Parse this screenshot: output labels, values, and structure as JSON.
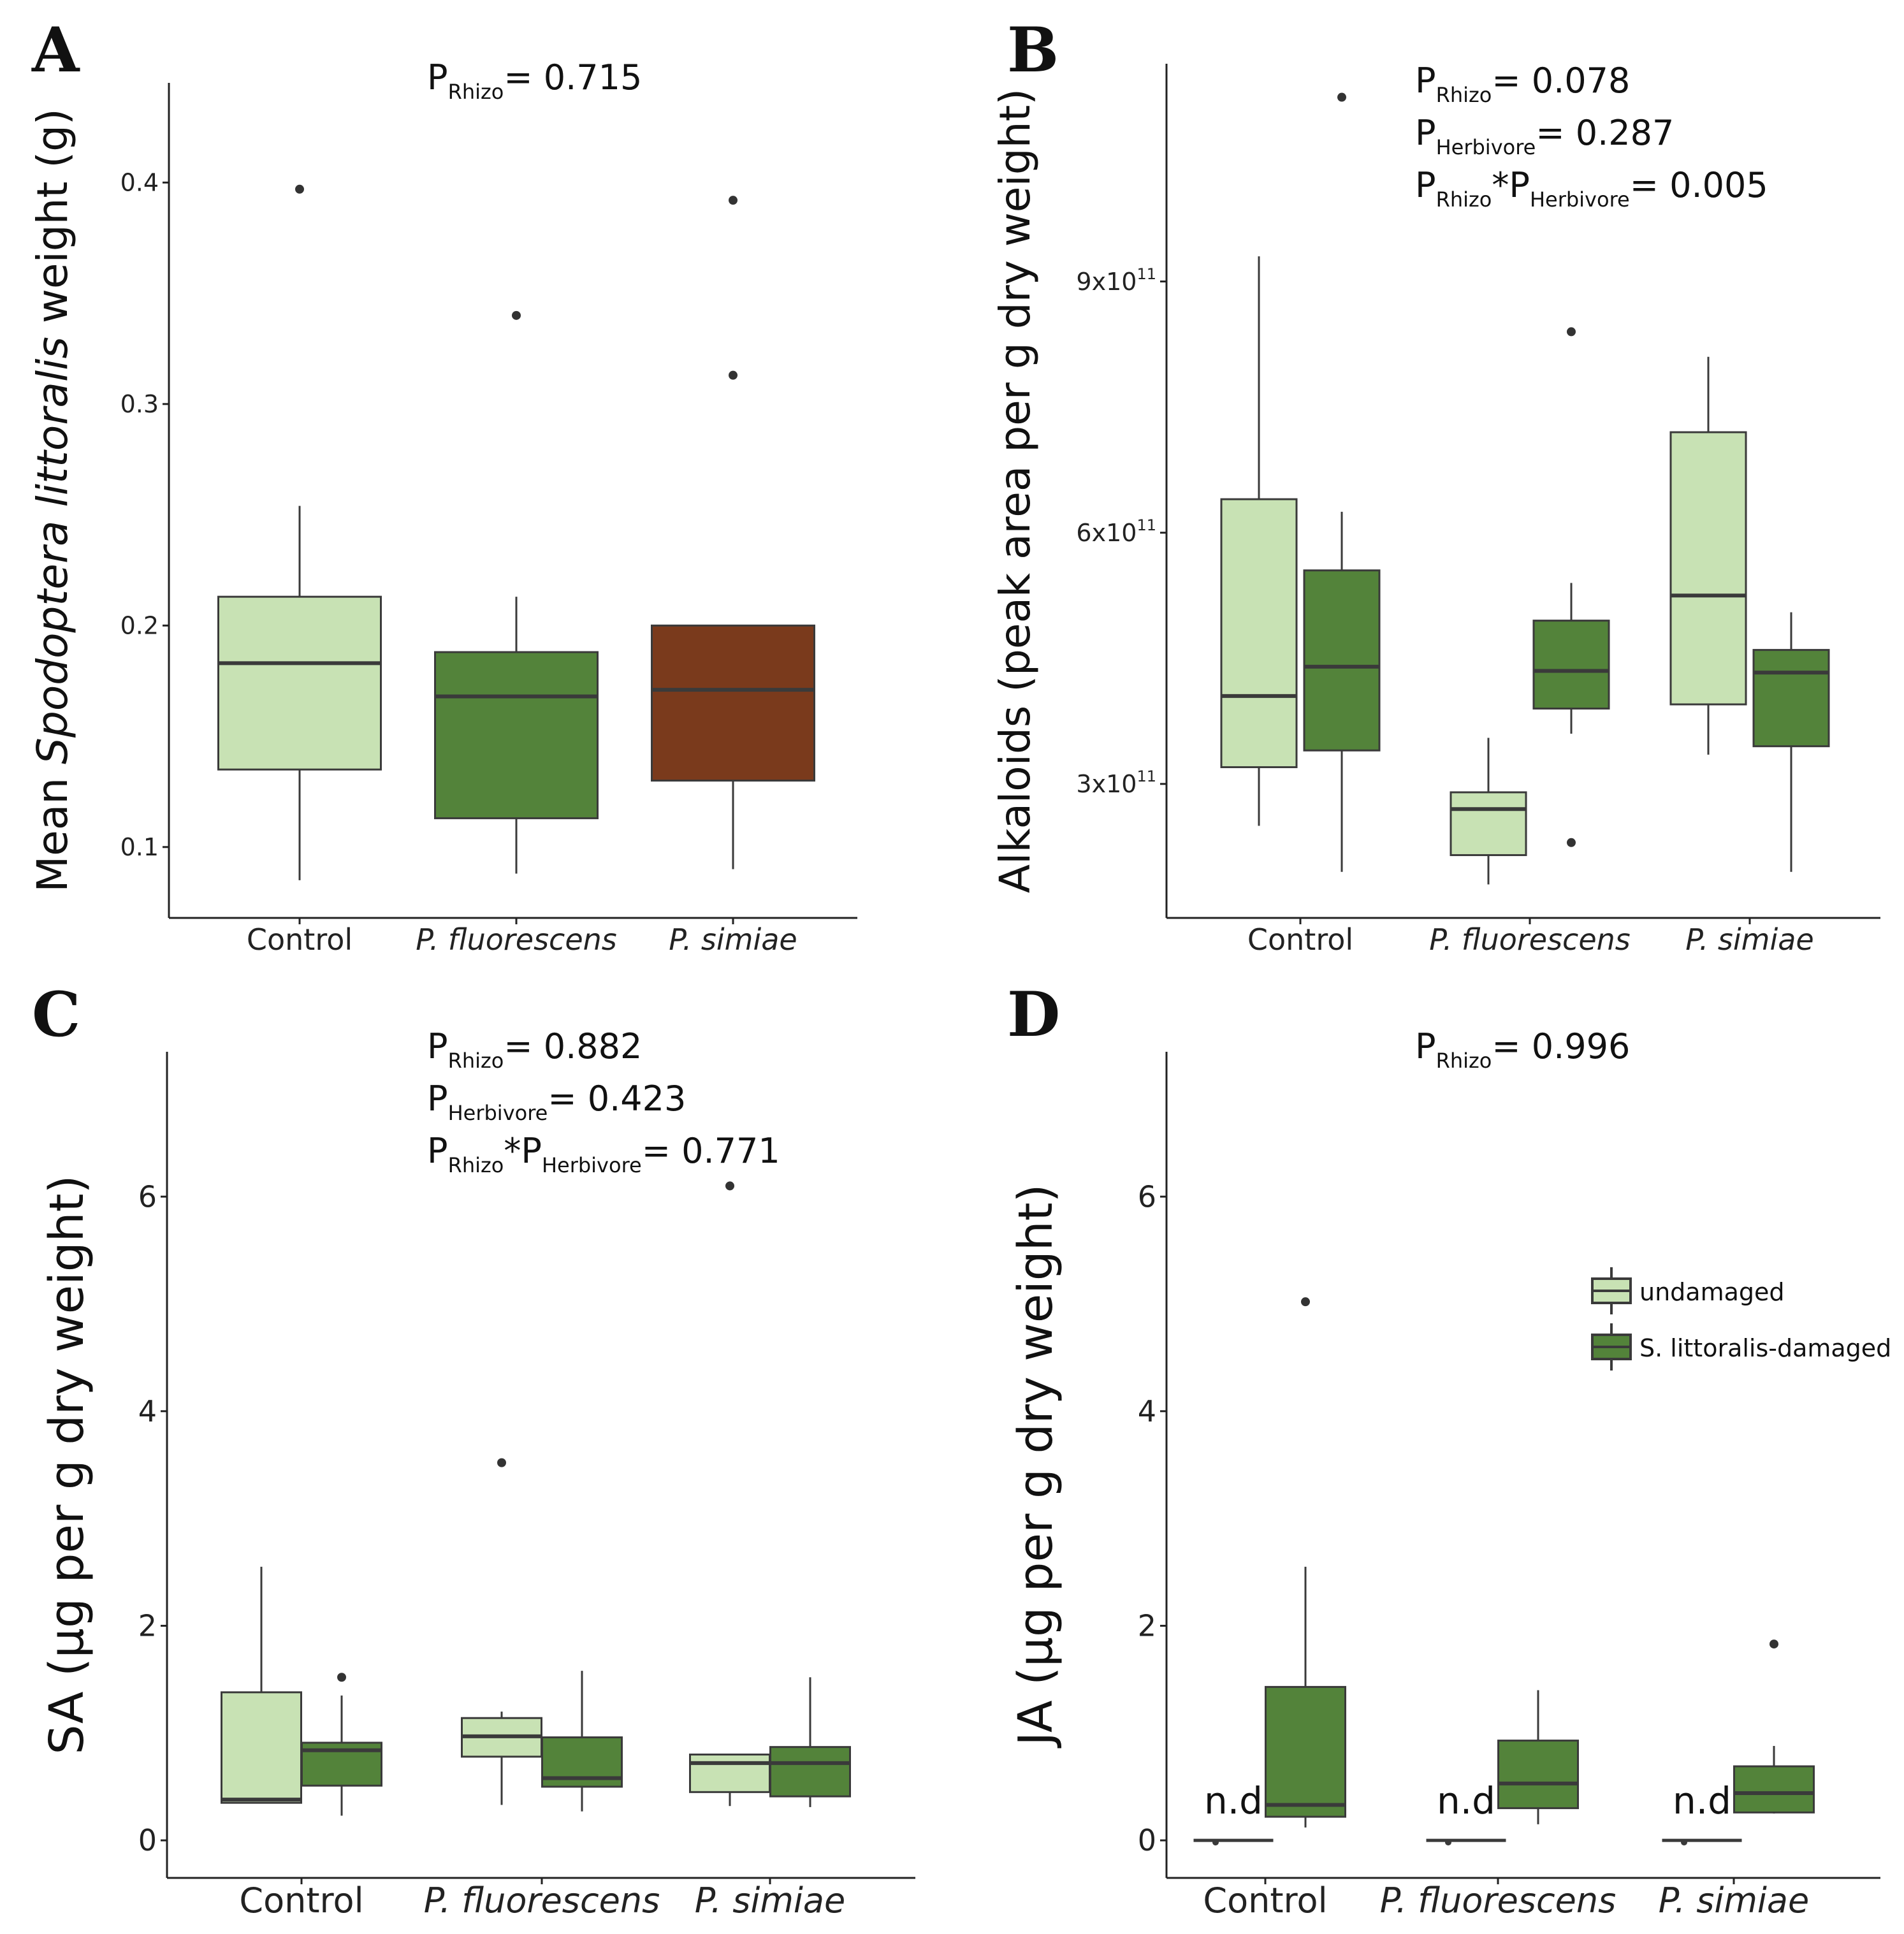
{
  "figure": {
    "panel_letters": [
      "A",
      "B",
      "C",
      "D"
    ]
  },
  "colors": {
    "undamaged": "#c8e2b4",
    "damaged": "#53833a",
    "psimiae_a": "#7a3a1c",
    "stroke": "#3a3a3a"
  },
  "legend": {
    "items": [
      {
        "label": "undamaged",
        "color_key": "undamaged"
      },
      {
        "label": "S. littoralis-damaged",
        "color_key": "damaged"
      }
    ]
  },
  "chart_data": [
    {
      "panel": "A",
      "type": "boxplot",
      "ylabel_parts": [
        "Mean ",
        "Spodoptera littoralis",
        " weight (g)"
      ],
      "ylim": [
        0.068,
        0.445
      ],
      "yticks": [
        0.1,
        0.2,
        0.3,
        0.4
      ],
      "ytick_labels": [
        "0.1",
        "0.2",
        "0.3",
        "0.4"
      ],
      "categories": [
        "Control",
        "P. fluorescens",
        "P. simiae"
      ],
      "category_italic": [
        false,
        true,
        true
      ],
      "stats": [
        {
          "lines": [
            [
              [
                "P",
                "n"
              ],
              [
                "Rhizo",
                "s"
              ],
              [
                "= 0.715",
                "n"
              ]
            ]
          ]
        }
      ],
      "boxes": [
        {
          "category": 0,
          "group": "undamaged",
          "min": 0.085,
          "q1": 0.135,
          "median": 0.183,
          "q3": 0.213,
          "max": 0.254,
          "outliers": [
            0.397
          ]
        },
        {
          "category": 1,
          "group": "damaged",
          "min": 0.088,
          "q1": 0.113,
          "median": 0.168,
          "q3": 0.188,
          "max": 0.213,
          "outliers": [
            0.34
          ]
        },
        {
          "category": 2,
          "group": "psimiae_a",
          "min": 0.09,
          "q1": 0.13,
          "median": 0.171,
          "q3": 0.2,
          "max": 0.2,
          "outliers": [
            0.392,
            0.313
          ]
        }
      ]
    },
    {
      "panel": "B",
      "type": "boxplot",
      "ylabel_parts": [
        "Alkaloids (peak area per g dry weight)"
      ],
      "ylim": [
        140000000000.0,
        1160000000000.0
      ],
      "yticks": [
        300000000000.0,
        600000000000.0,
        900000000000.0
      ],
      "ytick_labels": [
        [
          "3x10",
          "11"
        ],
        [
          "6x10",
          "11"
        ],
        [
          "9x10",
          "11"
        ]
      ],
      "categories": [
        "Control",
        "P. fluorescens",
        "P. simiae"
      ],
      "category_italic": [
        false,
        true,
        true
      ],
      "stats": [
        {
          "lines": [
            [
              [
                "P",
                "n"
              ],
              [
                "Rhizo",
                "s"
              ],
              [
                "= 0.078",
                "n"
              ]
            ],
            [
              [
                "P",
                "n"
              ],
              [
                "Herbivore",
                "s"
              ],
              [
                "= 0.287",
                "n"
              ]
            ],
            [
              [
                "P",
                "n"
              ],
              [
                "Rhizo",
                "s"
              ],
              [
                "*P",
                "n"
              ],
              [
                "Herbivore",
                "s"
              ],
              [
                "= 0.005",
                "n"
              ]
            ]
          ]
        }
      ],
      "boxes": [
        {
          "category": 0,
          "group": "undamaged",
          "min": 250000000000.0,
          "q1": 320000000000.0,
          "median": 405000000000.0,
          "q3": 640000000000.0,
          "max": 930000000000.0,
          "outliers": []
        },
        {
          "category": 0,
          "group": "damaged",
          "min": 195000000000.0,
          "q1": 340000000000.0,
          "median": 440000000000.0,
          "q3": 555000000000.0,
          "max": 625000000000.0,
          "outliers": [
            1120000000000.0
          ]
        },
        {
          "category": 1,
          "group": "undamaged",
          "min": 180000000000.0,
          "q1": 215000000000.0,
          "median": 270000000000.0,
          "q3": 290000000000.0,
          "max": 355000000000.0,
          "outliers": []
        },
        {
          "category": 1,
          "group": "damaged",
          "min": 360000000000.0,
          "q1": 390000000000.0,
          "median": 435000000000.0,
          "q3": 495000000000.0,
          "max": 540000000000.0,
          "outliers": [
            840000000000.0,
            230000000000.0
          ]
        },
        {
          "category": 2,
          "group": "undamaged",
          "min": 335000000000.0,
          "q1": 395000000000.0,
          "median": 525000000000.0,
          "q3": 720000000000.0,
          "max": 810000000000.0,
          "outliers": []
        },
        {
          "category": 2,
          "group": "damaged",
          "min": 195000000000.0,
          "q1": 345000000000.0,
          "median": 433000000000.0,
          "q3": 460000000000.0,
          "max": 505000000000.0,
          "outliers": []
        }
      ]
    },
    {
      "panel": "C",
      "type": "boxplot",
      "ylabel_parts": [
        "SA (µg per g dry weight)"
      ],
      "ylim": [
        -0.35,
        7.35
      ],
      "yticks": [
        0,
        2,
        4,
        6
      ],
      "ytick_labels": [
        "0",
        "2",
        "4",
        "6"
      ],
      "categories": [
        "Control",
        "P. fluorescens",
        "P. simiae"
      ],
      "category_italic": [
        false,
        true,
        true
      ],
      "stats": [
        {
          "lines": [
            [
              [
                "P",
                "n"
              ],
              [
                "Rhizo",
                "s"
              ],
              [
                "= 0.882",
                "n"
              ]
            ],
            [
              [
                "P",
                "n"
              ],
              [
                "Herbivore",
                "s"
              ],
              [
                "= 0.423",
                "n"
              ]
            ],
            [
              [
                "P",
                "n"
              ],
              [
                "Rhizo",
                "s"
              ],
              [
                "*P",
                "n"
              ],
              [
                "Herbivore",
                "s"
              ],
              [
                "= 0.771",
                "n"
              ]
            ]
          ]
        }
      ],
      "boxes": [
        {
          "category": 0,
          "group": "undamaged",
          "min": 0.35,
          "q1": 0.35,
          "median": 0.38,
          "q3": 1.38,
          "max": 2.55,
          "outliers": []
        },
        {
          "category": 0,
          "group": "damaged",
          "min": 0.23,
          "q1": 0.51,
          "median": 0.84,
          "q3": 0.91,
          "max": 1.35,
          "outliers": [
            1.52
          ]
        },
        {
          "category": 1,
          "group": "undamaged",
          "min": 0.33,
          "q1": 0.78,
          "median": 0.97,
          "q3": 1.14,
          "max": 1.2,
          "outliers": [
            3.52
          ]
        },
        {
          "category": 1,
          "group": "damaged",
          "min": 0.27,
          "q1": 0.5,
          "median": 0.58,
          "q3": 0.96,
          "max": 1.58,
          "outliers": []
        },
        {
          "category": 2,
          "group": "undamaged",
          "min": 0.32,
          "q1": 0.45,
          "median": 0.72,
          "q3": 0.8,
          "max": 0.8,
          "outliers": [
            6.1
          ]
        },
        {
          "category": 2,
          "group": "damaged",
          "min": 0.31,
          "q1": 0.41,
          "median": 0.72,
          "q3": 0.87,
          "max": 1.52,
          "outliers": []
        }
      ]
    },
    {
      "panel": "D",
      "type": "boxplot",
      "ylabel_parts": [
        "JA (µg per g dry weight)"
      ],
      "ylim": [
        -0.35,
        7.35
      ],
      "yticks": [
        0,
        2,
        4,
        6
      ],
      "ytick_labels": [
        "0",
        "2",
        "4",
        "6"
      ],
      "categories": [
        "Control",
        "P. fluorescens",
        "P. simiae"
      ],
      "category_italic": [
        false,
        true,
        true
      ],
      "nd_label": "n.d",
      "stats": [
        {
          "lines": [
            [
              [
                "P",
                "n"
              ],
              [
                "Rhizo",
                "s"
              ],
              [
                "= 0.996",
                "n"
              ]
            ]
          ]
        }
      ],
      "boxes": [
        {
          "category": 0,
          "group": "undamaged",
          "min": 0,
          "q1": 0,
          "median": 0,
          "q3": 0,
          "max": 0,
          "outliers": [],
          "nd": true
        },
        {
          "category": 0,
          "group": "damaged",
          "min": 0.12,
          "q1": 0.22,
          "median": 0.33,
          "q3": 1.43,
          "max": 2.55,
          "outliers": [
            5.02
          ]
        },
        {
          "category": 1,
          "group": "undamaged",
          "min": 0,
          "q1": 0,
          "median": 0,
          "q3": 0,
          "max": 0,
          "outliers": [],
          "nd": true
        },
        {
          "category": 1,
          "group": "damaged",
          "min": 0.15,
          "q1": 0.3,
          "median": 0.53,
          "q3": 0.93,
          "max": 1.4,
          "outliers": []
        },
        {
          "category": 2,
          "group": "undamaged",
          "min": 0,
          "q1": 0,
          "median": 0,
          "q3": 0,
          "max": 0,
          "outliers": [],
          "nd": true
        },
        {
          "category": 2,
          "group": "damaged",
          "min": 0.25,
          "q1": 0.26,
          "median": 0.44,
          "q3": 0.69,
          "max": 0.88,
          "outliers": [
            1.83
          ]
        }
      ]
    }
  ]
}
